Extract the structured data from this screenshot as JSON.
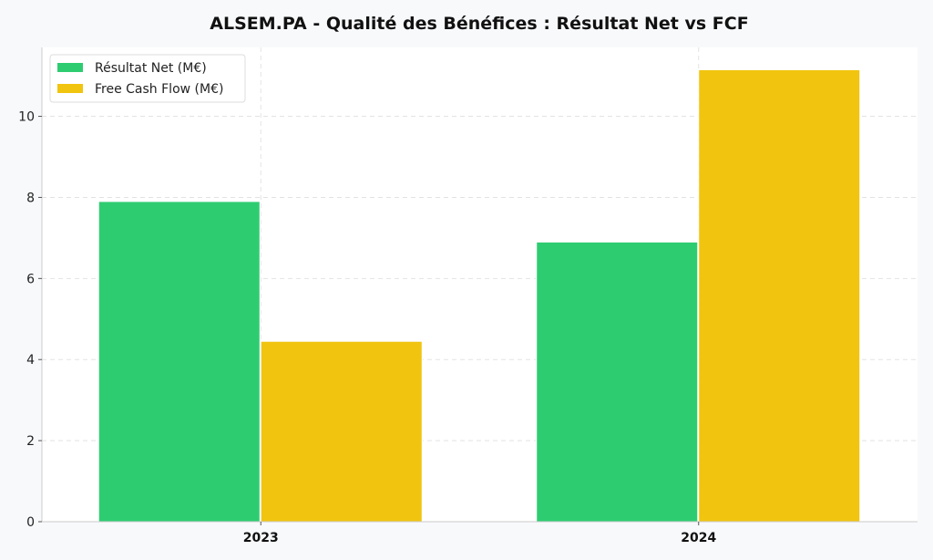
{
  "chart_data": {
    "type": "bar",
    "title": "ALSEM.PA - Qualité des Bénéfices : Résultat Net vs FCF",
    "categories": [
      "2023",
      "2024"
    ],
    "series": [
      {
        "name": "Résultat Net (M€)",
        "values": [
          7.9,
          6.9
        ],
        "color": "#2ecc71"
      },
      {
        "name": "Free Cash Flow (M€)",
        "values": [
          4.45,
          11.15
        ],
        "color": "#f1c40f"
      }
    ],
    "ylim": [
      0,
      11.7
    ],
    "yticks": [
      0,
      2,
      4,
      6,
      8,
      10
    ],
    "grid": true,
    "legend_position": "top-left"
  },
  "colors": {
    "page_background": "#f8f9fb",
    "plot_background": "#ffffff",
    "grid": "#e3e3e3",
    "axis": "#cccccc"
  }
}
